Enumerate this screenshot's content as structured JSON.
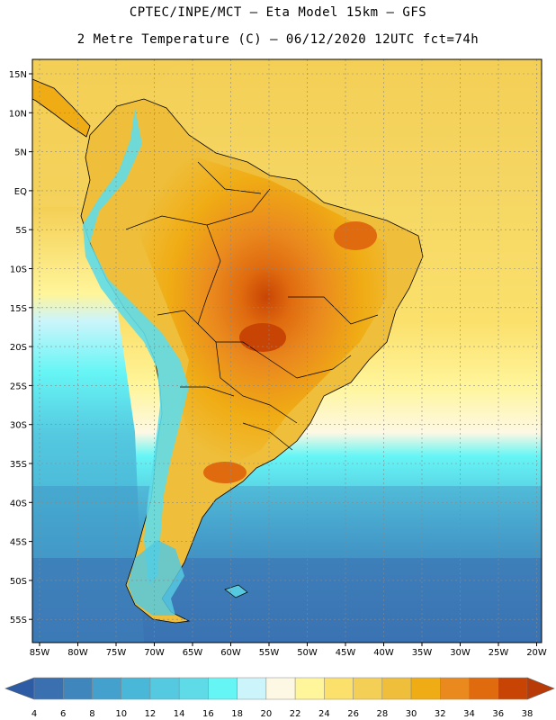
{
  "header": {
    "line1": "CPTEC/INPE/MCT –  Eta Model 15km – GFS",
    "line2": "2 Metre Temperature (C) – 06/12/2020 12UTC fct=74h"
  },
  "map": {
    "lat_labels": [
      "15N",
      "10N",
      "5N",
      "EQ",
      "5S",
      "10S",
      "15S",
      "20S",
      "25S",
      "30S",
      "35S",
      "40S",
      "45S",
      "50S",
      "55S"
    ],
    "lon_labels": [
      "85W",
      "80W",
      "75W",
      "70W",
      "65W",
      "60W",
      "55W",
      "50W",
      "45W",
      "40W",
      "35W",
      "30W",
      "25W",
      "20W"
    ]
  },
  "colorbar": {
    "values": [
      "4",
      "6",
      "8",
      "10",
      "12",
      "14",
      "16",
      "18",
      "20",
      "22",
      "24",
      "26",
      "28",
      "30",
      "32",
      "34",
      "36",
      "38"
    ],
    "colors": [
      "#3a6fb0",
      "#3f86bd",
      "#44a0cc",
      "#49b8d8",
      "#55c9e0",
      "#5fdbe8",
      "#66f5f5",
      "#ccf5fb",
      "#fdf8e4",
      "#fff59a",
      "#fbe06c",
      "#f4cf55",
      "#efbe3a",
      "#f0ac14",
      "#ea8a1e",
      "#e06b0f",
      "#c84404"
    ],
    "low_color": "#2d5ba4",
    "high_color": "#b83a06"
  }
}
